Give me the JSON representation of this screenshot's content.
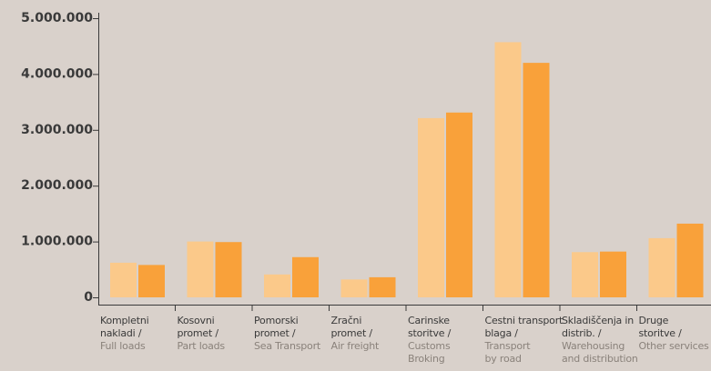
{
  "chart_data": {
    "type": "bar",
    "ylim": [
      0,
      5000000
    ],
    "yticks": [
      {
        "value": 0,
        "label": "0"
      },
      {
        "value": 1000000,
        "label": "1.000.000"
      },
      {
        "value": 2000000,
        "label": "2.000.000"
      },
      {
        "value": 3000000,
        "label": "3.000.000"
      },
      {
        "value": 4000000,
        "label": "4.000.000"
      },
      {
        "value": 5000000,
        "label": "5.000.000"
      }
    ],
    "categories": [
      {
        "sl_lines": [
          "Kompletni",
          "nakladi /"
        ],
        "en_lines": [
          "Full loads"
        ]
      },
      {
        "sl_lines": [
          "Kosovni",
          "promet /"
        ],
        "en_lines": [
          "Part loads"
        ]
      },
      {
        "sl_lines": [
          "Pomorski",
          "promet /"
        ],
        "en_lines": [
          "Sea Transport"
        ]
      },
      {
        "sl_lines": [
          "Zračni",
          "promet /"
        ],
        "en_lines": [
          "Air freight"
        ]
      },
      {
        "sl_lines": [
          "Carinske",
          "storitve /"
        ],
        "en_lines": [
          "Customs",
          "Broking"
        ]
      },
      {
        "sl_lines": [
          "Cestni transport",
          "blaga /"
        ],
        "en_lines": [
          "Transport",
          "by road"
        ]
      },
      {
        "sl_lines": [
          "Skladiščenja in",
          "distrib. /"
        ],
        "en_lines": [
          "Warehousing",
          "and distribution"
        ]
      },
      {
        "sl_lines": [
          "Druge",
          "storitve /"
        ],
        "en_lines": [
          "Other services"
        ]
      }
    ],
    "series": [
      {
        "color": "#fbc98a",
        "values": [
          620000,
          1000000,
          410000,
          320000,
          3210000,
          4570000,
          810000,
          1060000
        ]
      },
      {
        "color": "#f9a13a",
        "values": [
          580000,
          990000,
          720000,
          360000,
          3310000,
          4200000,
          820000,
          1320000
        ]
      }
    ],
    "axis_color": "#3a3a3a"
  }
}
